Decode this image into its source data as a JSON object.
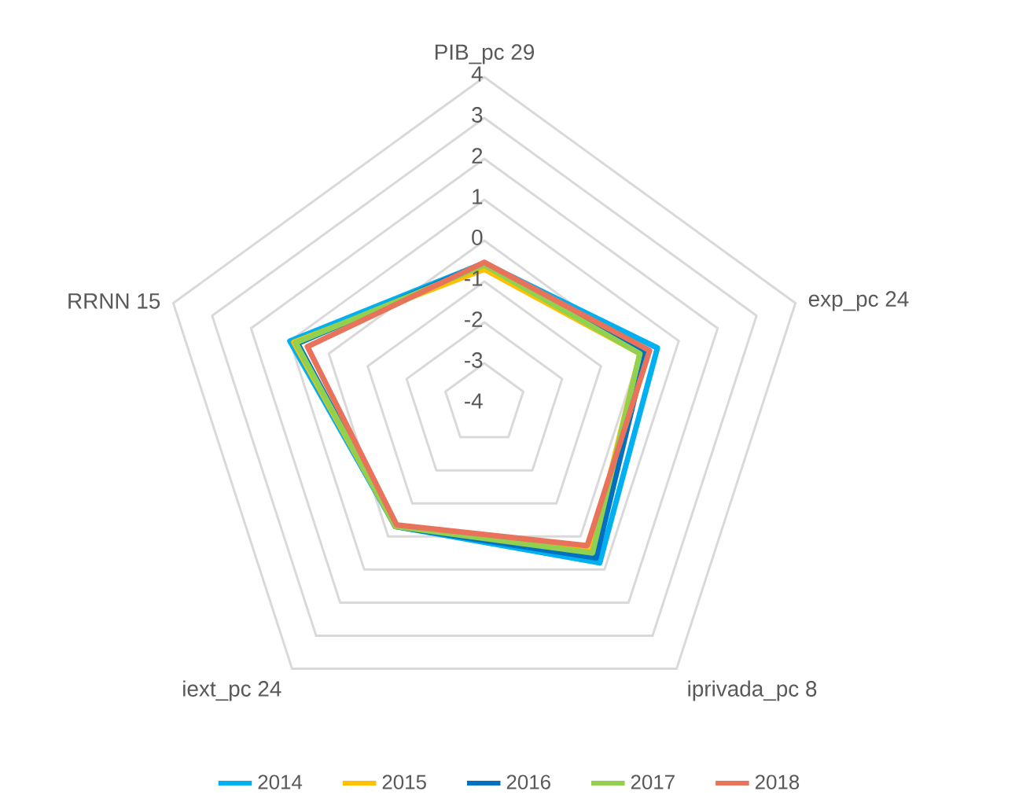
{
  "chart_data": {
    "type": "radar",
    "categories": [
      "PIB_pc 29",
      "exp_pc 24",
      "iprivada_pc 8",
      "iext_pc 24",
      "RRNN 15"
    ],
    "ylim": [
      -4,
      4
    ],
    "yticks": [
      -4,
      -3,
      -2,
      -1,
      0,
      1,
      2,
      3,
      4
    ],
    "grid": true,
    "legend": "bottom",
    "series": [
      {
        "name": "2014",
        "color": "#00b0f0",
        "values": [
          -0.55,
          0.45,
          0.8,
          -0.3,
          1.0
        ]
      },
      {
        "name": "2015",
        "color": "#ffc000",
        "values": [
          -0.7,
          0.0,
          0.45,
          -0.3,
          0.9
        ]
      },
      {
        "name": "2016",
        "color": "#0070c0",
        "values": [
          -0.55,
          0.15,
          0.65,
          -0.3,
          0.8
        ]
      },
      {
        "name": "2017",
        "color": "#92d050",
        "values": [
          -0.6,
          0.0,
          0.5,
          -0.3,
          0.85
        ]
      },
      {
        "name": "2018",
        "color": "#e8735a",
        "values": [
          -0.53,
          0.25,
          0.28,
          -0.35,
          0.55
        ]
      }
    ]
  }
}
